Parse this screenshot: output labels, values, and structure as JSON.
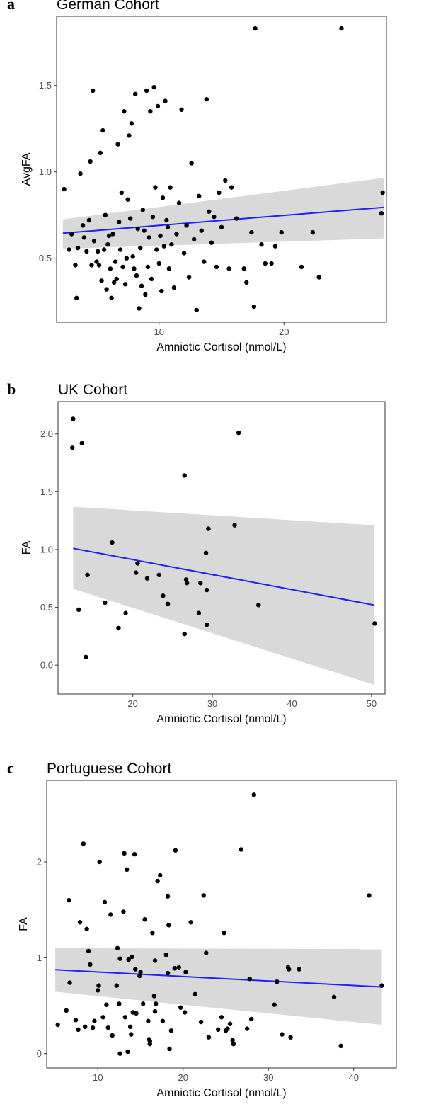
{
  "chart_data": [
    {
      "type": "scatter",
      "panel_letter": "a",
      "title": "German Cohort",
      "xlabel": "Amniotic Cortisol (nmol/L)",
      "ylabel": "AvgFA",
      "xlim": [
        1.8,
        28.2
      ],
      "ylim": [
        0.13,
        1.9
      ],
      "x_ticks": [
        10,
        20
      ],
      "y_ticks": [
        0.5,
        1.0,
        1.5
      ],
      "y_tick_labels": [
        "0.5",
        "1.0",
        "1.5"
      ],
      "grid": false,
      "fit": {
        "x": [
          2.3,
          28.0
        ],
        "y": [
          0.645,
          0.795
        ],
        "ci_lower": [
          0.555,
          0.615
        ],
        "ci_upper": [
          0.725,
          0.965
        ],
        "color": "#1f1fff"
      },
      "points": [
        [
          2.4,
          0.9
        ],
        [
          2.8,
          0.55
        ],
        [
          3.0,
          0.64
        ],
        [
          3.3,
          0.46
        ],
        [
          3.4,
          0.27
        ],
        [
          3.5,
          0.56
        ],
        [
          3.7,
          0.99
        ],
        [
          3.9,
          0.69
        ],
        [
          4.0,
          0.62
        ],
        [
          4.2,
          0.54
        ],
        [
          4.4,
          0.72
        ],
        [
          4.5,
          1.06
        ],
        [
          4.6,
          0.46
        ],
        [
          4.7,
          1.47
        ],
        [
          4.8,
          0.6
        ],
        [
          5.0,
          0.48
        ],
        [
          5.1,
          0.54
        ],
        [
          5.2,
          0.46
        ],
        [
          5.3,
          1.11
        ],
        [
          5.4,
          0.37
        ],
        [
          5.5,
          1.24
        ],
        [
          5.6,
          0.55
        ],
        [
          5.7,
          0.75
        ],
        [
          5.8,
          0.32
        ],
        [
          5.9,
          0.58
        ],
        [
          6.0,
          0.63
        ],
        [
          6.1,
          0.44
        ],
        [
          6.2,
          0.27
        ],
        [
          6.3,
          0.64
        ],
        [
          6.4,
          0.36
        ],
        [
          6.5,
          0.48
        ],
        [
          6.6,
          0.38
        ],
        [
          6.7,
          1.16
        ],
        [
          6.8,
          0.71
        ],
        [
          6.9,
          0.55
        ],
        [
          7.0,
          0.88
        ],
        [
          7.1,
          0.45
        ],
        [
          7.2,
          1.35
        ],
        [
          7.3,
          0.35
        ],
        [
          7.4,
          0.5
        ],
        [
          7.5,
          0.84
        ],
        [
          7.6,
          1.21
        ],
        [
          7.7,
          0.73
        ],
        [
          7.8,
          1.28
        ],
        [
          7.9,
          0.51
        ],
        [
          8.0,
          0.44
        ],
        [
          8.1,
          1.45
        ],
        [
          8.2,
          0.4
        ],
        [
          8.3,
          0.67
        ],
        [
          8.4,
          0.21
        ],
        [
          8.5,
          0.56
        ],
        [
          8.6,
          0.34
        ],
        [
          8.7,
          0.78
        ],
        [
          8.8,
          0.66
        ],
        [
          8.9,
          0.29
        ],
        [
          9.0,
          1.47
        ],
        [
          9.1,
          0.45
        ],
        [
          9.2,
          0.62
        ],
        [
          9.3,
          1.35
        ],
        [
          9.4,
          0.38
        ],
        [
          9.5,
          0.74
        ],
        [
          9.6,
          1.49
        ],
        [
          9.7,
          0.91
        ],
        [
          9.8,
          0.55
        ],
        [
          9.9,
          1.38
        ],
        [
          10.0,
          0.47
        ],
        [
          10.1,
          0.63
        ],
        [
          10.2,
          0.31
        ],
        [
          10.3,
          0.85
        ],
        [
          10.4,
          0.57
        ],
        [
          10.5,
          1.41
        ],
        [
          10.6,
          0.72
        ],
        [
          10.7,
          0.68
        ],
        [
          10.8,
          0.44
        ],
        [
          10.9,
          0.91
        ],
        [
          11.0,
          0.58
        ],
        [
          11.2,
          0.33
        ],
        [
          11.4,
          0.64
        ],
        [
          11.6,
          0.82
        ],
        [
          11.8,
          1.36
        ],
        [
          12.0,
          0.53
        ],
        [
          12.2,
          0.69
        ],
        [
          12.4,
          0.39
        ],
        [
          12.6,
          1.05
        ],
        [
          12.8,
          0.61
        ],
        [
          13.0,
          0.2
        ],
        [
          13.2,
          0.86
        ],
        [
          13.4,
          0.66
        ],
        [
          13.6,
          0.48
        ],
        [
          13.8,
          1.42
        ],
        [
          14.0,
          0.77
        ],
        [
          14.2,
          0.59
        ],
        [
          14.4,
          0.74
        ],
        [
          14.6,
          0.45
        ],
        [
          14.8,
          0.88
        ],
        [
          15.0,
          0.68
        ],
        [
          15.3,
          0.95
        ],
        [
          15.6,
          0.44
        ],
        [
          15.8,
          0.91
        ],
        [
          16.2,
          0.73
        ],
        [
          16.8,
          0.44
        ],
        [
          17.0,
          0.36
        ],
        [
          17.4,
          0.65
        ],
        [
          17.6,
          0.22
        ],
        [
          17.7,
          1.83
        ],
        [
          18.2,
          0.58
        ],
        [
          18.5,
          0.47
        ],
        [
          19.0,
          0.47
        ],
        [
          19.3,
          0.57
        ],
        [
          19.8,
          0.65
        ],
        [
          21.4,
          0.45
        ],
        [
          22.3,
          0.65
        ],
        [
          22.8,
          0.39
        ],
        [
          24.6,
          1.83
        ],
        [
          27.8,
          0.76
        ],
        [
          27.9,
          0.88
        ]
      ]
    },
    {
      "type": "scatter",
      "panel_letter": "b",
      "title": "UK Cohort",
      "xlabel": "Amniotic Cortisol (nmol/L)",
      "ylabel": "FA",
      "xlim": [
        10.6,
        51.7
      ],
      "ylim": [
        -0.25,
        2.28
      ],
      "x_ticks": [
        20,
        30,
        40,
        50
      ],
      "y_ticks": [
        0.0,
        0.5,
        1.0,
        1.5,
        2.0
      ],
      "y_tick_labels": [
        "0.0",
        "0.5",
        "1.0",
        "1.5",
        "2.0"
      ],
      "grid": false,
      "fit": {
        "x": [
          12.5,
          50.3
        ],
        "y": [
          1.01,
          0.52
        ],
        "ci_lower": [
          0.66,
          -0.17
        ],
        "ci_upper": [
          1.37,
          1.21
        ],
        "color": "#1f1fff"
      },
      "points": [
        [
          12.4,
          1.88
        ],
        [
          12.5,
          2.13
        ],
        [
          13.2,
          0.48
        ],
        [
          13.6,
          1.92
        ],
        [
          14.1,
          0.07
        ],
        [
          14.3,
          0.78
        ],
        [
          16.5,
          0.54
        ],
        [
          17.4,
          1.06
        ],
        [
          18.2,
          0.32
        ],
        [
          19.1,
          0.45
        ],
        [
          20.4,
          0.8
        ],
        [
          20.6,
          0.88
        ],
        [
          21.8,
          0.75
        ],
        [
          23.3,
          0.78
        ],
        [
          23.8,
          0.6
        ],
        [
          24.4,
          0.53
        ],
        [
          26.5,
          0.27
        ],
        [
          26.5,
          1.64
        ],
        [
          26.7,
          0.74
        ],
        [
          26.8,
          0.71
        ],
        [
          28.3,
          0.45
        ],
        [
          28.5,
          0.71
        ],
        [
          29.2,
          0.97
        ],
        [
          29.3,
          0.65
        ],
        [
          29.3,
          0.35
        ],
        [
          29.5,
          1.18
        ],
        [
          32.8,
          1.21
        ],
        [
          33.3,
          2.01
        ],
        [
          35.8,
          0.52
        ],
        [
          50.4,
          0.36
        ]
      ]
    },
    {
      "type": "scatter",
      "panel_letter": "c",
      "title": "Portuguese Cohort",
      "xlabel": "Amniotic Cortisol (nmol/L)",
      "ylabel": "FA",
      "xlim": [
        4.0,
        45.0
      ],
      "ylim": [
        -0.15,
        2.85
      ],
      "x_ticks": [
        10,
        20,
        30,
        40
      ],
      "y_ticks": [
        0,
        1,
        2
      ],
      "y_tick_labels": [
        "0",
        "1",
        "2"
      ],
      "grid": false,
      "fit": {
        "x": [
          5.0,
          43.3
        ],
        "y": [
          0.875,
          0.695
        ],
        "ci_lower": [
          0.645,
          0.3
        ],
        "ci_upper": [
          1.1,
          1.09
        ],
        "color": "#1f1fff"
      },
      "points": [
        [
          5.3,
          0.3
        ],
        [
          6.3,
          0.45
        ],
        [
          6.6,
          1.6
        ],
        [
          6.7,
          0.74
        ],
        [
          7.4,
          0.35
        ],
        [
          7.7,
          0.25
        ],
        [
          7.9,
          1.37
        ],
        [
          8.3,
          2.19
        ],
        [
          8.5,
          0.28
        ],
        [
          8.7,
          1.3
        ],
        [
          8.9,
          1.07
        ],
        [
          9.1,
          0.93
        ],
        [
          9.4,
          0.27
        ],
        [
          9.6,
          0.34
        ],
        [
          10.0,
          0.66
        ],
        [
          10.1,
          0.71
        ],
        [
          10.2,
          2.0
        ],
        [
          10.6,
          0.38
        ],
        [
          10.8,
          1.58
        ],
        [
          11.0,
          0.51
        ],
        [
          11.2,
          0.27
        ],
        [
          11.5,
          1.45
        ],
        [
          11.7,
          0.19
        ],
        [
          12.2,
          0.71
        ],
        [
          12.3,
          1.1
        ],
        [
          12.5,
          0.52
        ],
        [
          12.6,
          0.99
        ],
        [
          12.6,
          0.0
        ],
        [
          13.0,
          1.48
        ],
        [
          13.1,
          2.09
        ],
        [
          13.2,
          0.38
        ],
        [
          13.4,
          1.92
        ],
        [
          13.5,
          0.02
        ],
        [
          13.6,
          0.98
        ],
        [
          13.8,
          0.28
        ],
        [
          13.9,
          0.2
        ],
        [
          14.0,
          1.01
        ],
        [
          14.1,
          0.43
        ],
        [
          14.3,
          2.08
        ],
        [
          14.4,
          0.88
        ],
        [
          14.5,
          0.42
        ],
        [
          14.9,
          0.81
        ],
        [
          15.0,
          0.85
        ],
        [
          15.3,
          0.52
        ],
        [
          15.5,
          1.4
        ],
        [
          15.9,
          0.34
        ],
        [
          16.0,
          0.15
        ],
        [
          16.1,
          0.13
        ],
        [
          16.1,
          0.1
        ],
        [
          16.4,
          1.26
        ],
        [
          16.6,
          0.6
        ],
        [
          16.7,
          0.97
        ],
        [
          16.7,
          0.44
        ],
        [
          16.8,
          0.52
        ],
        [
          17.0,
          1.8
        ],
        [
          17.3,
          1.86
        ],
        [
          17.6,
          0.34
        ],
        [
          18.0,
          1.03
        ],
        [
          18.2,
          0.84
        ],
        [
          18.2,
          1.64
        ],
        [
          18.3,
          1.34
        ],
        [
          18.4,
          0.05
        ],
        [
          18.6,
          0.24
        ],
        [
          19.0,
          0.89
        ],
        [
          19.1,
          2.12
        ],
        [
          19.5,
          0.9
        ],
        [
          19.7,
          0.48
        ],
        [
          20.2,
          0.43
        ],
        [
          20.3,
          0.85
        ],
        [
          20.9,
          1.37
        ],
        [
          21.4,
          0.62
        ],
        [
          22.1,
          0.33
        ],
        [
          22.4,
          1.65
        ],
        [
          22.7,
          1.05
        ],
        [
          23.0,
          0.17
        ],
        [
          24.1,
          0.25
        ],
        [
          24.5,
          0.38
        ],
        [
          24.8,
          1.26
        ],
        [
          25.0,
          0.24
        ],
        [
          25.2,
          0.26
        ],
        [
          25.5,
          0.31
        ],
        [
          25.8,
          0.14
        ],
        [
          25.9,
          0.1
        ],
        [
          26.8,
          2.13
        ],
        [
          27.5,
          0.26
        ],
        [
          27.8,
          0.78
        ],
        [
          28.0,
          0.36
        ],
        [
          28.3,
          2.7
        ],
        [
          30.7,
          0.51
        ],
        [
          31.0,
          0.75
        ],
        [
          31.6,
          0.2
        ],
        [
          32.3,
          0.9
        ],
        [
          32.4,
          0.88
        ],
        [
          32.6,
          0.17
        ],
        [
          33.6,
          0.88
        ],
        [
          37.7,
          0.59
        ],
        [
          38.5,
          0.08
        ],
        [
          41.8,
          1.65
        ],
        [
          43.3,
          0.71
        ]
      ]
    }
  ]
}
